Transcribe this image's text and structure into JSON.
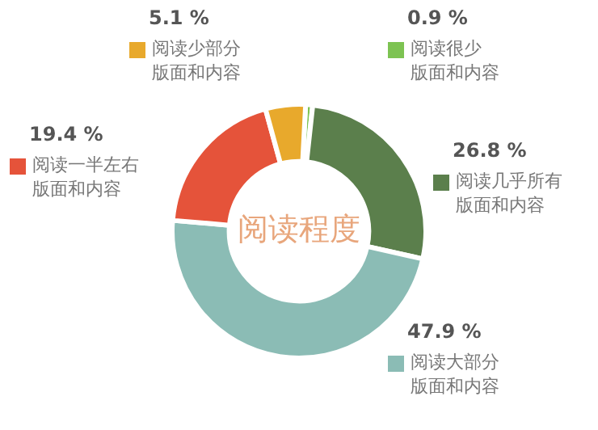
{
  "chart_data": {
    "type": "donut",
    "title": "阅读程度",
    "categories": [
      "阅读很少版面和内容",
      "阅读几乎所有版面和内容",
      "阅读大部分版面和内容",
      "阅读一半左右版面和内容",
      "阅读少部分版面和内容"
    ],
    "values": [
      0.9,
      26.8,
      47.9,
      19.4,
      5.1
    ],
    "value_labels": [
      "0.9 %",
      "26.8 %",
      "47.9 %",
      "19.4 %",
      "5.1 %"
    ],
    "colors": [
      "#7dc352",
      "#5b7f4c",
      "#8bbcb5",
      "#e5533a",
      "#e8a92c"
    ],
    "legend": "top left"
  }
}
